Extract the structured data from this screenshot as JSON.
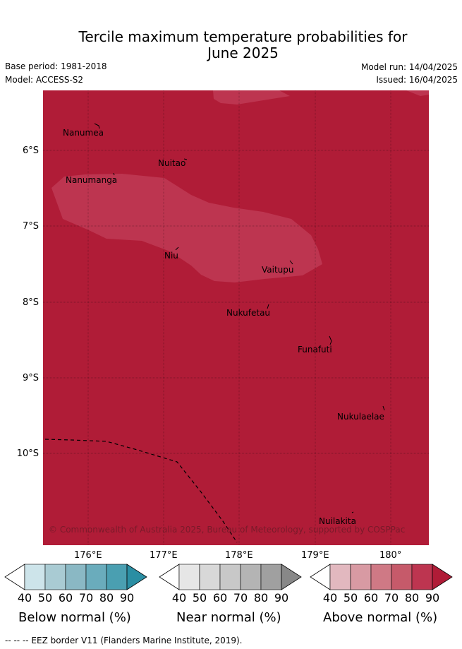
{
  "title_line1": "Tercile maximum temperature probabilities for",
  "title_line2": "June 2025",
  "base_period": "Base period: 1981-2018",
  "model": "Model: ACCESS-S2",
  "model_run": "Model run: 14/04/2025",
  "issued": "Issued: 16/04/2025",
  "lat_labels": [
    "6°S",
    "7°S",
    "8°S",
    "9°S",
    "10°S"
  ],
  "lon_labels": [
    "176°E",
    "177°E",
    "178°E",
    "179°E",
    "180°"
  ],
  "places": [
    {
      "name": "Nanumea"
    },
    {
      "name": "Nuitao"
    },
    {
      "name": "Nanumanga"
    },
    {
      "name": "Niu"
    },
    {
      "name": "Vaitupu"
    },
    {
      "name": "Nukufetau"
    },
    {
      "name": "Funafuti"
    },
    {
      "name": "Nukulaelae"
    },
    {
      "name": "Nuilakita"
    }
  ],
  "copyright": "© Commonwealth of Australia 2025, Bureau of Meteorology, supported by COSPPac",
  "colorbars": [
    {
      "label": "Below normal (%)",
      "ticks": [
        "40",
        "50",
        "60",
        "70",
        "80",
        "90"
      ],
      "colors": [
        "#ffffff",
        "#cde4ea",
        "#a9cbd3",
        "#8ab8c4",
        "#6aacbc",
        "#4a9fb1",
        "#2a8ea3"
      ]
    },
    {
      "label": "Near normal (%)",
      "ticks": [
        "40",
        "50",
        "60",
        "70",
        "80",
        "90"
      ],
      "colors": [
        "#ffffff",
        "#e6e6e6",
        "#d8d8d8",
        "#c8c8c8",
        "#b4b4b4",
        "#a0a0a0",
        "#888888"
      ]
    },
    {
      "label": "Above normal (%)",
      "ticks": [
        "40",
        "50",
        "60",
        "70",
        "80",
        "90"
      ],
      "colors": [
        "#ffffff",
        "#e2b8bf",
        "#d89aa3",
        "#cf7985",
        "#c65a6a",
        "#bd3550",
        "#b01c37"
      ]
    }
  ],
  "map_colors": {
    "above_90": "#b01c37",
    "above_80": "#bd3550",
    "grid": "#000000"
  },
  "footnote": "--  --  -- EEZ border V11 (Flanders Marine Institute, 2019)."
}
